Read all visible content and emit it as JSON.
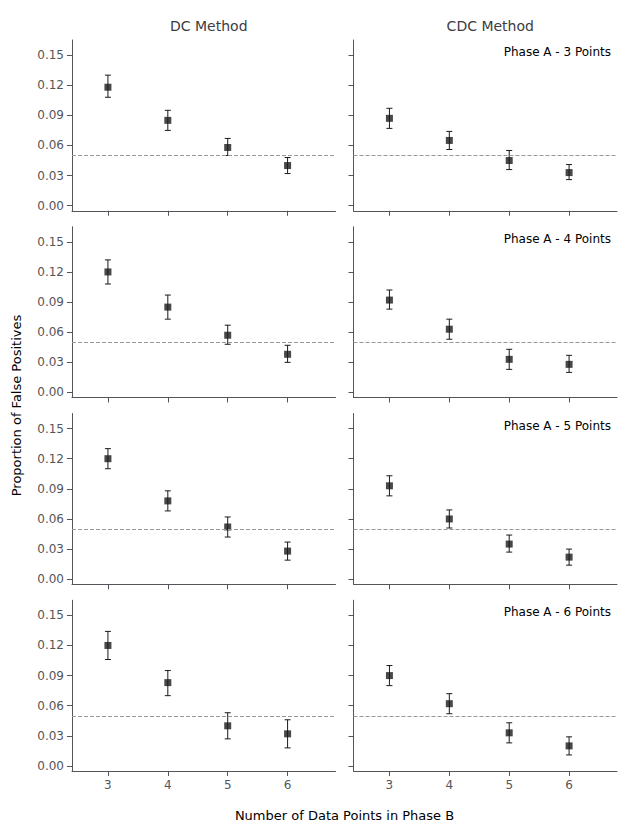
{
  "chart_data": [
    {
      "type": "scatter",
      "title": "DC Method",
      "ylabel": "Proportion of False Positives",
      "x": [
        3,
        4,
        5,
        6
      ],
      "values": [
        0.118,
        0.085,
        0.058,
        0.04
      ],
      "yerr_lo": [
        0.01,
        0.01,
        0.008,
        0.008
      ],
      "yerr_hi": [
        0.012,
        0.01,
        0.009,
        0.008
      ],
      "color": "#1a1a1a",
      "marker": "square",
      "reference_line": {
        "value": 0.05,
        "color": "#999999",
        "line_style": "dashed"
      },
      "xlim": [
        2.4,
        6.8
      ],
      "xticks": [
        3,
        4,
        5,
        6
      ],
      "ylim": [
        -0.005,
        0.165
      ],
      "yticks": [
        {
          "value": 0,
          "label": "0.00"
        },
        0.03,
        0.06,
        0.09,
        0.12,
        0.15
      ],
      "grid": false,
      "tick_labels": "y"
    },
    {
      "type": "scatter",
      "title": "CDC Method",
      "annotation": "Phase A - 3 Points",
      "x": [
        3,
        4,
        5,
        6
      ],
      "values": [
        0.087,
        0.065,
        0.045,
        0.033
      ],
      "yerr_lo": [
        0.01,
        0.009,
        0.009,
        0.007
      ],
      "yerr_hi": [
        0.01,
        0.009,
        0.01,
        0.008
      ],
      "color": "#1a1a1a",
      "marker": "square",
      "reference_line": {
        "value": 0.05,
        "color": "#999999",
        "line_style": "dashed"
      },
      "xlim": [
        2.4,
        6.8
      ],
      "xticks": [
        3,
        4,
        5,
        6
      ],
      "ylim": [
        -0.005,
        0.165
      ],
      "yticks": [
        {
          "value": 0,
          "label": "0.00"
        },
        0.03,
        0.06,
        0.09,
        0.12,
        0.15
      ],
      "grid": false,
      "tick_labels": false
    },
    {
      "type": "scatter",
      "x": [
        3,
        4,
        5,
        6
      ],
      "values": [
        0.12,
        0.085,
        0.057,
        0.038
      ],
      "yerr_lo": [
        0.012,
        0.012,
        0.009,
        0.008
      ],
      "yerr_hi": [
        0.012,
        0.012,
        0.01,
        0.009
      ],
      "color": "#1a1a1a",
      "marker": "square",
      "reference_line": {
        "value": 0.05,
        "color": "#999999",
        "line_style": "dashed"
      },
      "xlim": [
        2.4,
        6.8
      ],
      "xticks": [
        3,
        4,
        5,
        6
      ],
      "ylim": [
        -0.005,
        0.165
      ],
      "yticks": [
        {
          "value": 0,
          "label": "0.00"
        },
        0.03,
        0.06,
        0.09,
        0.12,
        0.15
      ],
      "grid": false,
      "tick_labels": "y"
    },
    {
      "type": "scatter",
      "annotation": "Phase A - 4 Points",
      "x": [
        3,
        4,
        5,
        6
      ],
      "values": [
        0.092,
        0.063,
        0.033,
        0.028
      ],
      "yerr_lo": [
        0.009,
        0.01,
        0.01,
        0.008
      ],
      "yerr_hi": [
        0.01,
        0.01,
        0.01,
        0.009
      ],
      "color": "#1a1a1a",
      "marker": "square",
      "reference_line": {
        "value": 0.05,
        "color": "#999999",
        "line_style": "dashed"
      },
      "xlim": [
        2.4,
        6.8
      ],
      "xticks": [
        3,
        4,
        5,
        6
      ],
      "ylim": [
        -0.005,
        0.165
      ],
      "yticks": [
        {
          "value": 0,
          "label": "0.00"
        },
        0.03,
        0.06,
        0.09,
        0.12,
        0.15
      ],
      "grid": false,
      "tick_labels": false
    },
    {
      "type": "scatter",
      "x": [
        3,
        4,
        5,
        6
      ],
      "values": [
        0.12,
        0.078,
        0.052,
        0.028
      ],
      "yerr_lo": [
        0.01,
        0.01,
        0.01,
        0.009
      ],
      "yerr_hi": [
        0.01,
        0.01,
        0.01,
        0.009
      ],
      "color": "#1a1a1a",
      "marker": "square",
      "reference_line": {
        "value": 0.05,
        "color": "#999999",
        "line_style": "dashed"
      },
      "xlim": [
        2.4,
        6.8
      ],
      "xticks": [
        3,
        4,
        5,
        6
      ],
      "ylim": [
        -0.005,
        0.165
      ],
      "yticks": [
        {
          "value": 0,
          "label": "0.00"
        },
        0.03,
        0.06,
        0.09,
        0.12,
        0.15
      ],
      "grid": false,
      "tick_labels": "y"
    },
    {
      "type": "scatter",
      "annotation": "Phase A - 5 Points",
      "x": [
        3,
        4,
        5,
        6
      ],
      "values": [
        0.093,
        0.06,
        0.035,
        0.022
      ],
      "yerr_lo": [
        0.01,
        0.009,
        0.008,
        0.008
      ],
      "yerr_hi": [
        0.01,
        0.009,
        0.009,
        0.008
      ],
      "color": "#1a1a1a",
      "marker": "square",
      "reference_line": {
        "value": 0.05,
        "color": "#999999",
        "line_style": "dashed"
      },
      "xlim": [
        2.4,
        6.8
      ],
      "xticks": [
        3,
        4,
        5,
        6
      ],
      "ylim": [
        -0.005,
        0.165
      ],
      "yticks": [
        {
          "value": 0,
          "label": "0.00"
        },
        0.03,
        0.06,
        0.09,
        0.12,
        0.15
      ],
      "grid": false,
      "tick_labels": false
    },
    {
      "type": "scatter",
      "xlabel": "Number of Data Points in Phase B",
      "x": [
        3,
        4,
        5,
        6
      ],
      "values": [
        0.12,
        0.083,
        0.04,
        0.032
      ],
      "yerr_lo": [
        0.014,
        0.013,
        0.013,
        0.014
      ],
      "yerr_hi": [
        0.014,
        0.012,
        0.013,
        0.014
      ],
      "color": "#1a1a1a",
      "marker": "square",
      "reference_line": {
        "value": 0.05,
        "color": "#999999",
        "line_style": "dashed"
      },
      "xlim": [
        2.4,
        6.8
      ],
      "xticks": [
        3,
        4,
        5,
        6
      ],
      "ylim": [
        -0.005,
        0.165
      ],
      "yticks": [
        {
          "value": 0,
          "label": "0.00"
        },
        0.03,
        0.06,
        0.09,
        0.12,
        0.15
      ],
      "grid": false
    },
    {
      "type": "scatter",
      "annotation": "Phase A - 6 Points",
      "x": [
        3,
        4,
        5,
        6
      ],
      "values": [
        0.09,
        0.062,
        0.033,
        0.02
      ],
      "yerr_lo": [
        0.01,
        0.01,
        0.01,
        0.009
      ],
      "yerr_hi": [
        0.01,
        0.01,
        0.01,
        0.009
      ],
      "color": "#1a1a1a",
      "marker": "square",
      "reference_line": {
        "value": 0.05,
        "color": "#999999",
        "line_style": "dashed"
      },
      "xlim": [
        2.4,
        6.8
      ],
      "xticks": [
        3,
        4,
        5,
        6
      ],
      "ylim": [
        -0.005,
        0.165
      ],
      "yticks": [
        {
          "value": 0,
          "label": "0.00"
        },
        0.03,
        0.06,
        0.09,
        0.12,
        0.15
      ],
      "grid": false,
      "tick_labels": "x"
    }
  ]
}
